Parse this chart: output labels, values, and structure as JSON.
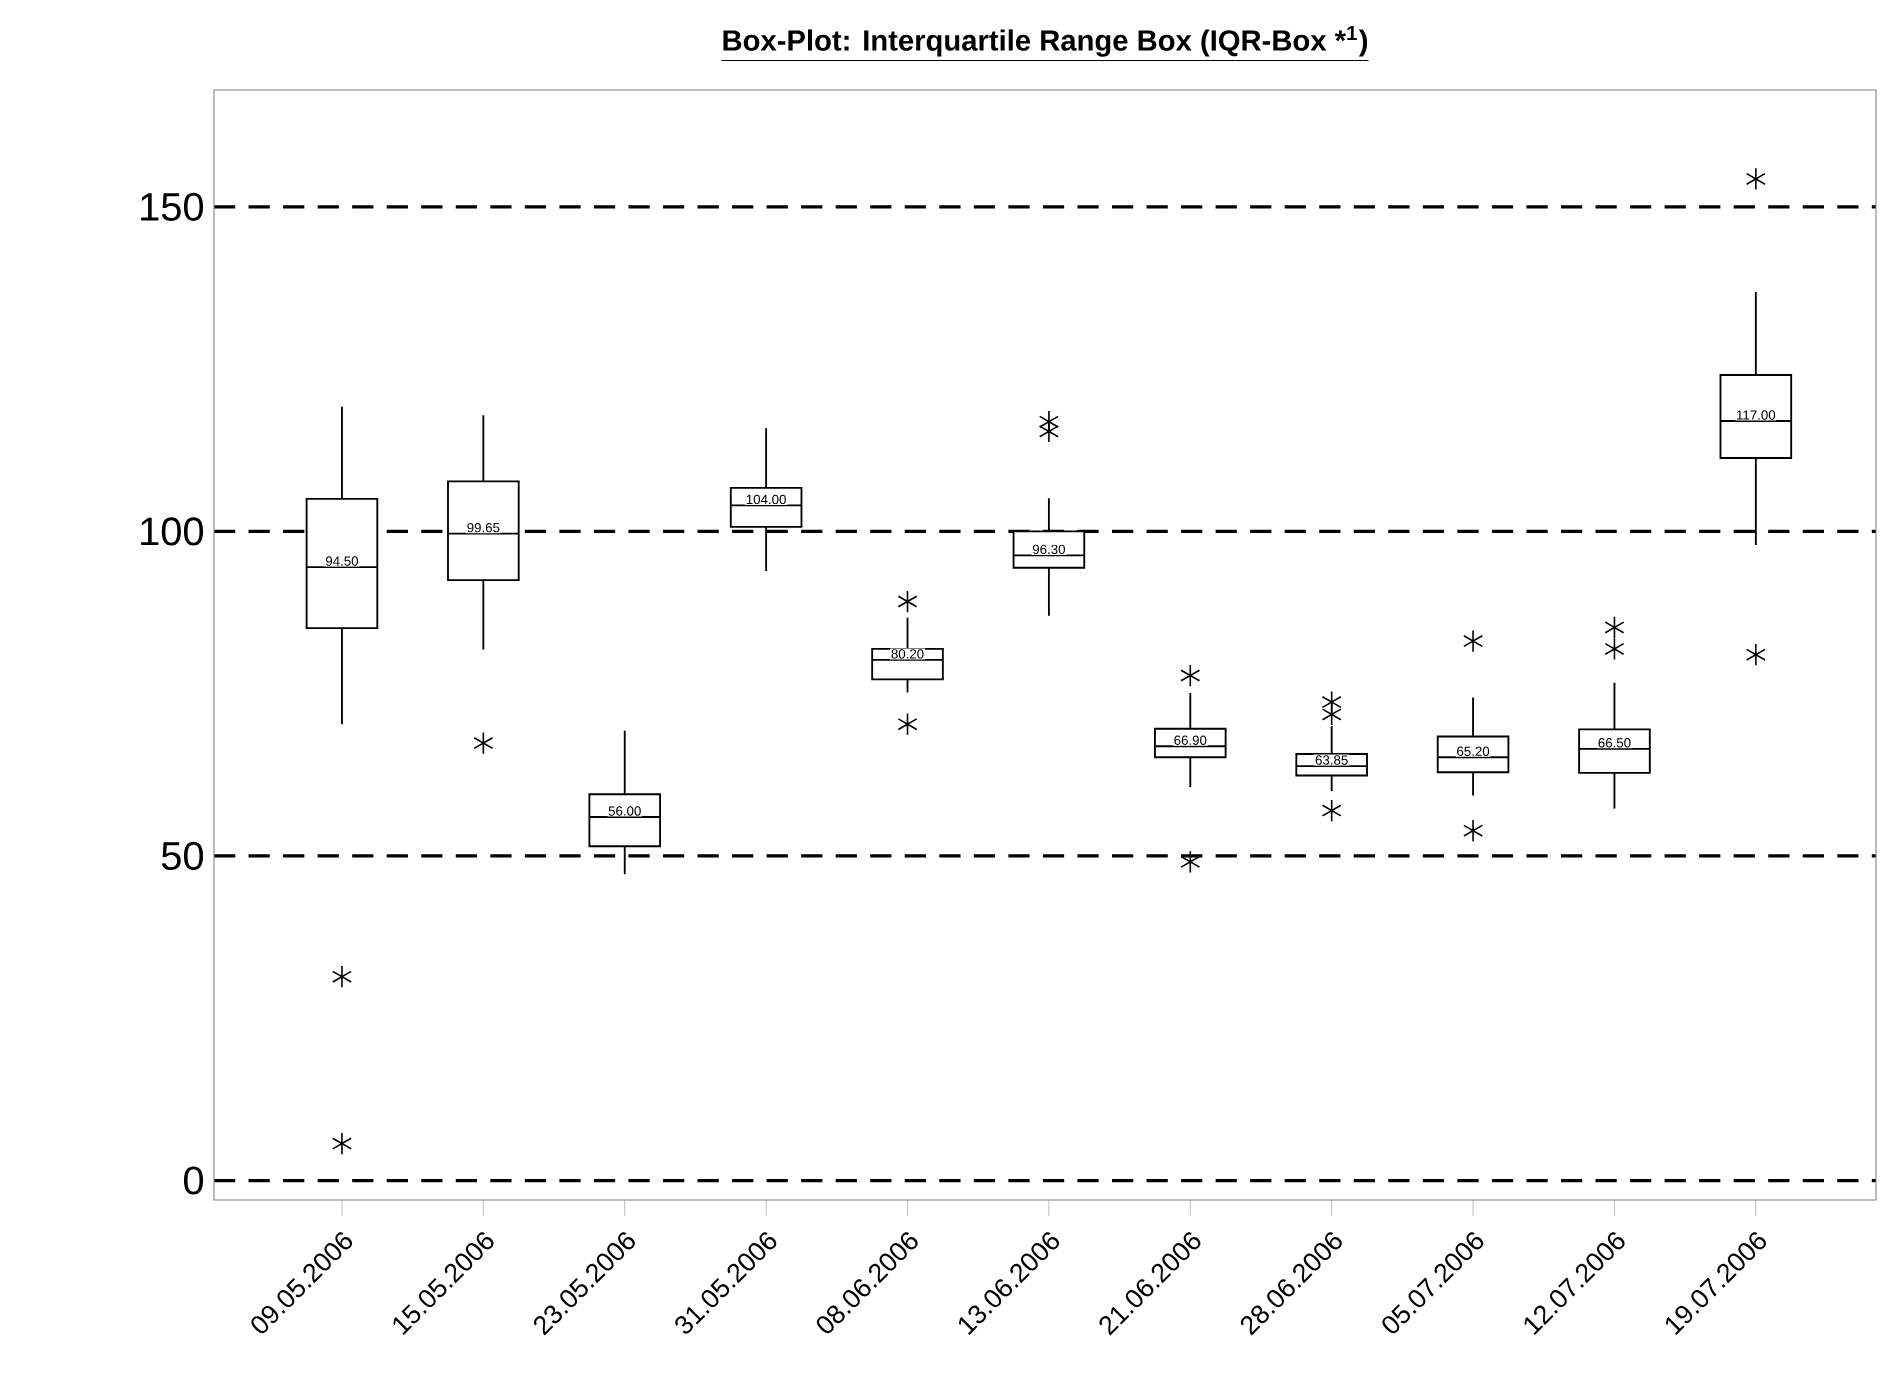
{
  "chart_data": {
    "type": "box",
    "title": "Box-Plot: Interquartile Range Box (IQR-Box *$^{1}$)",
    "categories": [
      "09.05.2006",
      "15.05.2006",
      "23.05.2006",
      "31.05.2006",
      "08.06.2006",
      "13.06.2006",
      "21.06.2006",
      "28.06.2006",
      "05.07.2006",
      "12.07.2006",
      "19.07.2006"
    ],
    "boxes": [
      {
        "low": 70.3,
        "q1": 85.1,
        "median": 94.5,
        "q3": 105.0,
        "high": 119.2,
        "outliers": [
          31.4,
          5.7
        ]
      },
      {
        "low": 81.8,
        "q1": 92.5,
        "median": 99.65,
        "q3": 107.7,
        "high": 117.9,
        "outliers": [
          67.4
        ]
      },
      {
        "low": 47.2,
        "q1": 51.5,
        "median": 56.0,
        "q3": 59.5,
        "high": 69.3
      },
      {
        "low": 93.9,
        "q1": 100.7,
        "median": 104.0,
        "q3": 106.7,
        "high": 115.9
      },
      {
        "low": 75.2,
        "q1": 77.2,
        "median": 80.2,
        "q3": 81.9,
        "high": 86.7,
        "outliers": [
          89.2,
          70.3
        ]
      },
      {
        "low": 87.0,
        "q1": 94.4,
        "median": 96.3,
        "q3": 100.0,
        "high": 105.1,
        "outliers": [
          116.9,
          115.4
        ]
      },
      {
        "low": 60.6,
        "q1": 65.2,
        "median": 66.9,
        "q3": 69.6,
        "high": 75.1,
        "outliers": [
          77.8,
          49.1
        ]
      },
      {
        "low": 60.0,
        "q1": 62.4,
        "median": 63.85,
        "q3": 65.7,
        "high": 70.0,
        "outliers": [
          73.7,
          71.8,
          57.0
        ]
      },
      {
        "low": 59.3,
        "q1": 62.9,
        "median": 65.2,
        "q3": 68.4,
        "high": 74.4,
        "outliers": [
          83.1,
          53.9
        ]
      },
      {
        "low": 57.3,
        "q1": 62.8,
        "median": 66.5,
        "q3": 69.5,
        "high": 76.7,
        "outliers": [
          85.2,
          81.9
        ]
      },
      {
        "low": 97.9,
        "q1": 111.3,
        "median": 117.0,
        "q3": 124.1,
        "high": 136.9,
        "outliers": [
          154.3,
          81.0
        ]
      }
    ],
    "value_labels": [
      "94.50",
      "99.65",
      "56.00",
      "104.00",
      "80.20",
      "96.30",
      "66.90",
      "63.85",
      "65.20",
      "66.50",
      "117.00"
    ],
    "color": "#000000",
    "marker": "star",
    "ylim": [
      -3,
      168
    ],
    "yticks": [
      0,
      50,
      100,
      150
    ],
    "grid": "y"
  }
}
